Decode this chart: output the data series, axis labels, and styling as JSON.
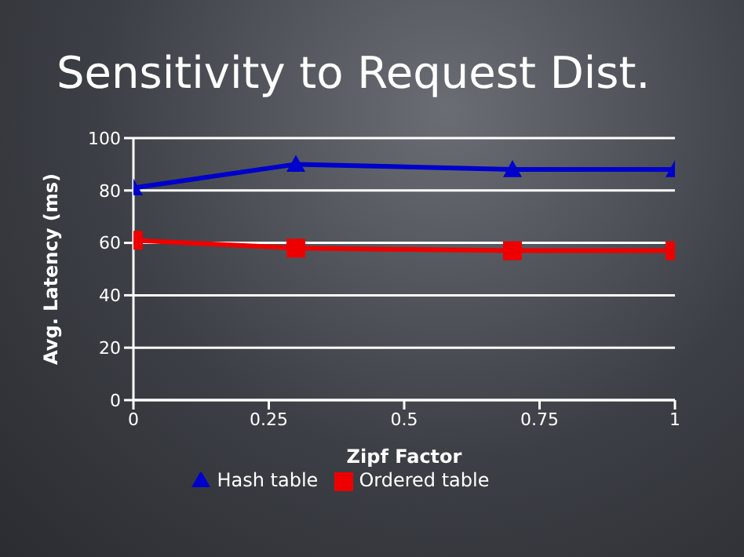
{
  "chart_data": {
    "type": "line",
    "title": "Sensitivity to Request Dist.",
    "xlabel": "Zipf Factor",
    "ylabel": "Avg. Latency (ms)",
    "x": [
      0,
      0.3,
      0.7,
      1
    ],
    "series": [
      {
        "name": "Hash table",
        "color": "#0000cc",
        "marker": "triangle",
        "values": [
          81,
          90,
          88,
          88
        ]
      },
      {
        "name": "Ordered table",
        "color": "#ee0000",
        "marker": "square",
        "values": [
          61,
          58,
          57,
          57
        ]
      }
    ],
    "xlim": [
      0,
      1
    ],
    "xticks": [
      0,
      0.25,
      0.5,
      0.75,
      1
    ],
    "ylim": [
      0,
      100
    ],
    "yticks": [
      0,
      20,
      40,
      60,
      80,
      100
    ],
    "grid": "y",
    "legend": "bottom"
  }
}
